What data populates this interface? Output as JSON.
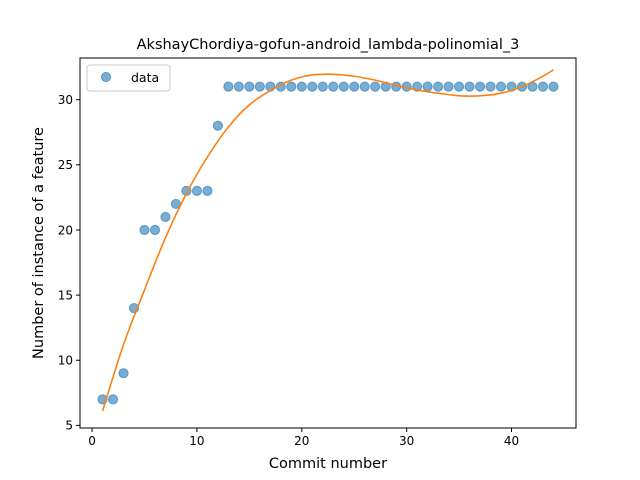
{
  "chart_data": {
    "type": "scatter",
    "title": "AkshayChordiya-gofun-android_lambda-polinomial_3",
    "xlabel": "Commit number",
    "ylabel": "Number of instance of a feature",
    "xlim": [
      -1.15,
      46.15
    ],
    "ylim": [
      4.8,
      33.2
    ],
    "xticks": [
      0,
      10,
      20,
      30,
      40
    ],
    "yticks": [
      5,
      10,
      15,
      20,
      25,
      30
    ],
    "grid": false,
    "legend_position": "top-left",
    "series": [
      {
        "name": "data",
        "kind": "scatter",
        "color": "#1f77b4",
        "x": [
          1,
          2,
          3,
          4,
          5,
          6,
          7,
          8,
          9,
          10,
          11,
          12,
          13,
          14,
          15,
          16,
          17,
          18,
          19,
          20,
          21,
          22,
          23,
          24,
          25,
          26,
          27,
          28,
          29,
          30,
          31,
          32,
          33,
          34,
          35,
          36,
          37,
          38,
          39,
          40,
          41,
          42,
          43,
          44
        ],
        "y": [
          7,
          7,
          9,
          14,
          20,
          20,
          21,
          22,
          23,
          23,
          23,
          28,
          31,
          31,
          31,
          31,
          31,
          31,
          31,
          31,
          31,
          31,
          31,
          31,
          31,
          31,
          31,
          31,
          31,
          31,
          31,
          31,
          31,
          31,
          31,
          31,
          31,
          31,
          31,
          31,
          31,
          31,
          31,
          31
        ]
      },
      {
        "kind": "line",
        "color": "#ff7f0e",
        "x": [
          1,
          3,
          5,
          7,
          9,
          11,
          13,
          15,
          17,
          19,
          21,
          23,
          25,
          27,
          29,
          31,
          33,
          35,
          37,
          39,
          41,
          43,
          44
        ],
        "y": [
          6.1,
          11.2,
          15.4,
          19.4,
          22.8,
          25.6,
          27.9,
          29.6,
          30.7,
          31.5,
          31.9,
          31.95,
          31.8,
          31.5,
          31.1,
          30.75,
          30.5,
          30.3,
          30.3,
          30.5,
          31.0,
          31.8,
          32.3
        ]
      }
    ]
  }
}
